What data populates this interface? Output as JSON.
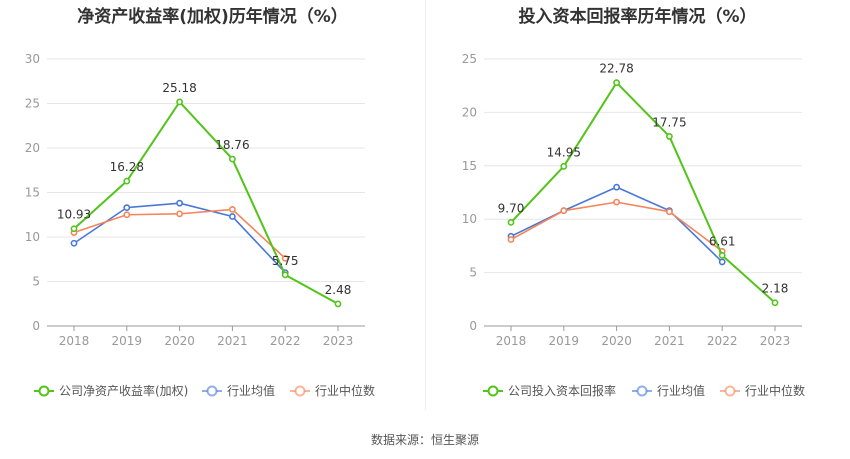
{
  "chart_data": [
    {
      "type": "line",
      "title": "净资产收益率(加权)历年情况（%）",
      "categories": [
        "2018",
        "2019",
        "2020",
        "2021",
        "2022",
        "2023"
      ],
      "ylim": [
        0,
        30
      ],
      "yticks": [
        "0",
        "5",
        "10",
        "15",
        "20",
        "25",
        "30"
      ],
      "series": [
        {
          "name": "公司净资产收益率(加权)",
          "color": "#52c41a",
          "values": [
            10.93,
            16.28,
            25.18,
            18.76,
            5.75,
            2.48
          ],
          "labels": [
            "10.93",
            "16.28",
            "25.18",
            "18.76",
            "5.75",
            "2.48"
          ]
        },
        {
          "name": "行业均值",
          "color": "#4a78d8",
          "values": [
            9.3,
            13.3,
            13.8,
            12.3,
            6.0,
            null
          ]
        },
        {
          "name": "行业中位数",
          "color": "#f5855a",
          "values": [
            10.5,
            12.5,
            12.6,
            13.1,
            7.6,
            null
          ]
        }
      ]
    },
    {
      "type": "line",
      "title": "投入资本回报率历年情况（%）",
      "categories": [
        "2018",
        "2019",
        "2020",
        "2021",
        "2022",
        "2023"
      ],
      "ylim": [
        0,
        25
      ],
      "yticks": [
        "0",
        "5",
        "10",
        "15",
        "20",
        "25"
      ],
      "series": [
        {
          "name": "公司投入资本回报率",
          "color": "#52c41a",
          "values": [
            9.7,
            14.95,
            22.78,
            17.75,
            6.61,
            2.18
          ],
          "labels": [
            "9.70",
            "14.95",
            "22.78",
            "17.75",
            "6.61",
            "2.18"
          ]
        },
        {
          "name": "行业均值",
          "color": "#4a78d8",
          "values": [
            8.4,
            10.8,
            13.0,
            10.8,
            6.0,
            null
          ]
        },
        {
          "name": "行业中位数",
          "color": "#f5855a",
          "values": [
            8.1,
            10.8,
            11.6,
            10.7,
            7.0,
            null
          ]
        }
      ]
    }
  ],
  "footer": {
    "source": "数据来源：恒生聚源"
  }
}
